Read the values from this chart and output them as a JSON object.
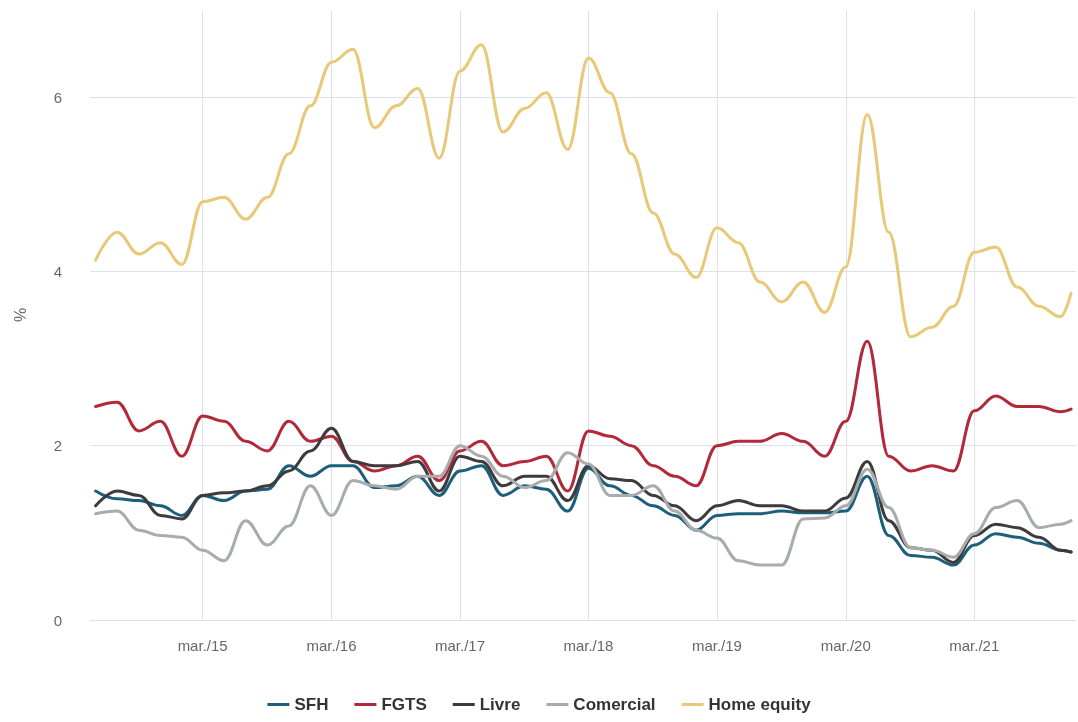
{
  "chart_data": {
    "type": "line",
    "ylabel": "%",
    "grid": true,
    "legend": "bottom",
    "marker": "none",
    "line_style": "solid",
    "xlim": [
      "2014-04-15",
      "2021-12-15"
    ],
    "xticks": [
      {
        "value": "2015-03",
        "label": "mar./15"
      },
      {
        "value": "2016-03",
        "label": "mar./16"
      },
      {
        "value": "2017-03",
        "label": "mar./17"
      },
      {
        "value": "2018-03",
        "label": "mar./18"
      },
      {
        "value": "2019-03",
        "label": "mar./19"
      },
      {
        "value": "2020-03",
        "label": "mar./20"
      },
      {
        "value": "2021-03",
        "label": "mar./21"
      }
    ],
    "ylim": [
      0,
      7
    ],
    "yticks": [
      0,
      2,
      4,
      6
    ],
    "x": [
      "2014-05",
      "2014-07",
      "2014-09",
      "2014-11",
      "2015-01",
      "2015-03",
      "2015-05",
      "2015-07",
      "2015-09",
      "2015-11",
      "2016-01",
      "2016-03",
      "2016-05",
      "2016-07",
      "2016-09",
      "2016-11",
      "2017-01",
      "2017-03",
      "2017-05",
      "2017-07",
      "2017-09",
      "2017-11",
      "2018-01",
      "2018-03",
      "2018-05",
      "2018-07",
      "2018-09",
      "2018-11",
      "2019-01",
      "2019-03",
      "2019-05",
      "2019-07",
      "2019-09",
      "2019-11",
      "2020-01",
      "2020-03",
      "2020-05",
      "2020-07",
      "2020-09",
      "2020-11",
      "2021-01",
      "2021-03",
      "2021-05",
      "2021-07",
      "2021-09",
      "2021-11",
      "2021-12"
    ],
    "series": [
      {
        "name": "SFH",
        "color": "#1d5f7a",
        "values": [
          1.48,
          1.39,
          1.37,
          1.31,
          1.2,
          1.43,
          1.37,
          1.48,
          1.5,
          1.77,
          1.65,
          1.77,
          1.77,
          1.52,
          1.54,
          1.65,
          1.43,
          1.71,
          1.77,
          1.43,
          1.54,
          1.5,
          1.25,
          1.74,
          1.54,
          1.43,
          1.31,
          1.2,
          1.03,
          1.2,
          1.22,
          1.22,
          1.25,
          1.23,
          1.23,
          1.25,
          1.65,
          0.97,
          0.74,
          0.72,
          0.63,
          0.86,
          0.99,
          0.95,
          0.88,
          0.8,
          0.78
        ]
      },
      {
        "name": "FGTS",
        "color": "#b22a3a",
        "values": [
          2.45,
          2.5,
          2.17,
          2.28,
          1.88,
          2.34,
          2.28,
          2.05,
          1.94,
          2.28,
          2.05,
          2.11,
          1.82,
          1.71,
          1.77,
          1.88,
          1.6,
          1.94,
          2.05,
          1.77,
          1.82,
          1.88,
          1.48,
          2.17,
          2.11,
          2.0,
          1.77,
          1.65,
          1.54,
          2.0,
          2.05,
          2.05,
          2.14,
          2.05,
          1.88,
          2.28,
          3.2,
          1.88,
          1.71,
          1.77,
          1.71,
          2.4,
          2.57,
          2.45,
          2.45,
          2.39,
          2.42
        ]
      },
      {
        "name": "Livre",
        "color": "#3d3b3d",
        "values": [
          1.31,
          1.48,
          1.43,
          1.2,
          1.16,
          1.43,
          1.46,
          1.48,
          1.54,
          1.71,
          1.94,
          2.2,
          1.82,
          1.77,
          1.77,
          1.82,
          1.48,
          1.88,
          1.82,
          1.54,
          1.65,
          1.65,
          1.37,
          1.77,
          1.62,
          1.6,
          1.43,
          1.31,
          1.14,
          1.31,
          1.37,
          1.31,
          1.31,
          1.25,
          1.25,
          1.4,
          1.82,
          1.14,
          0.83,
          0.8,
          0.66,
          0.97,
          1.1,
          1.06,
          0.95,
          0.8,
          0.78
        ]
      },
      {
        "name": "Comercial",
        "color": "#a9acac",
        "values": [
          1.22,
          1.25,
          1.03,
          0.97,
          0.95,
          0.8,
          0.68,
          1.14,
          0.86,
          1.08,
          1.54,
          1.2,
          1.6,
          1.54,
          1.5,
          1.65,
          1.65,
          2.0,
          1.88,
          1.65,
          1.52,
          1.6,
          1.92,
          1.79,
          1.43,
          1.43,
          1.54,
          1.25,
          1.03,
          0.94,
          0.68,
          0.63,
          0.63,
          1.16,
          1.17,
          1.31,
          1.73,
          1.29,
          0.83,
          0.8,
          0.72,
          0.99,
          1.29,
          1.37,
          1.06,
          1.1,
          1.14
        ]
      },
      {
        "name": "Home equity",
        "color": "#e8c97a",
        "values": [
          4.13,
          4.45,
          4.2,
          4.33,
          4.08,
          4.8,
          4.85,
          4.6,
          4.85,
          5.35,
          5.9,
          6.4,
          6.55,
          5.65,
          5.9,
          6.1,
          5.3,
          6.3,
          6.6,
          5.6,
          5.87,
          6.05,
          5.4,
          6.45,
          6.05,
          5.35,
          4.67,
          4.2,
          3.93,
          4.5,
          4.33,
          3.88,
          3.65,
          3.88,
          3.53,
          4.05,
          5.8,
          4.45,
          3.25,
          3.36,
          3.6,
          4.22,
          4.28,
          3.82,
          3.6,
          3.48,
          3.75
        ]
      }
    ]
  }
}
